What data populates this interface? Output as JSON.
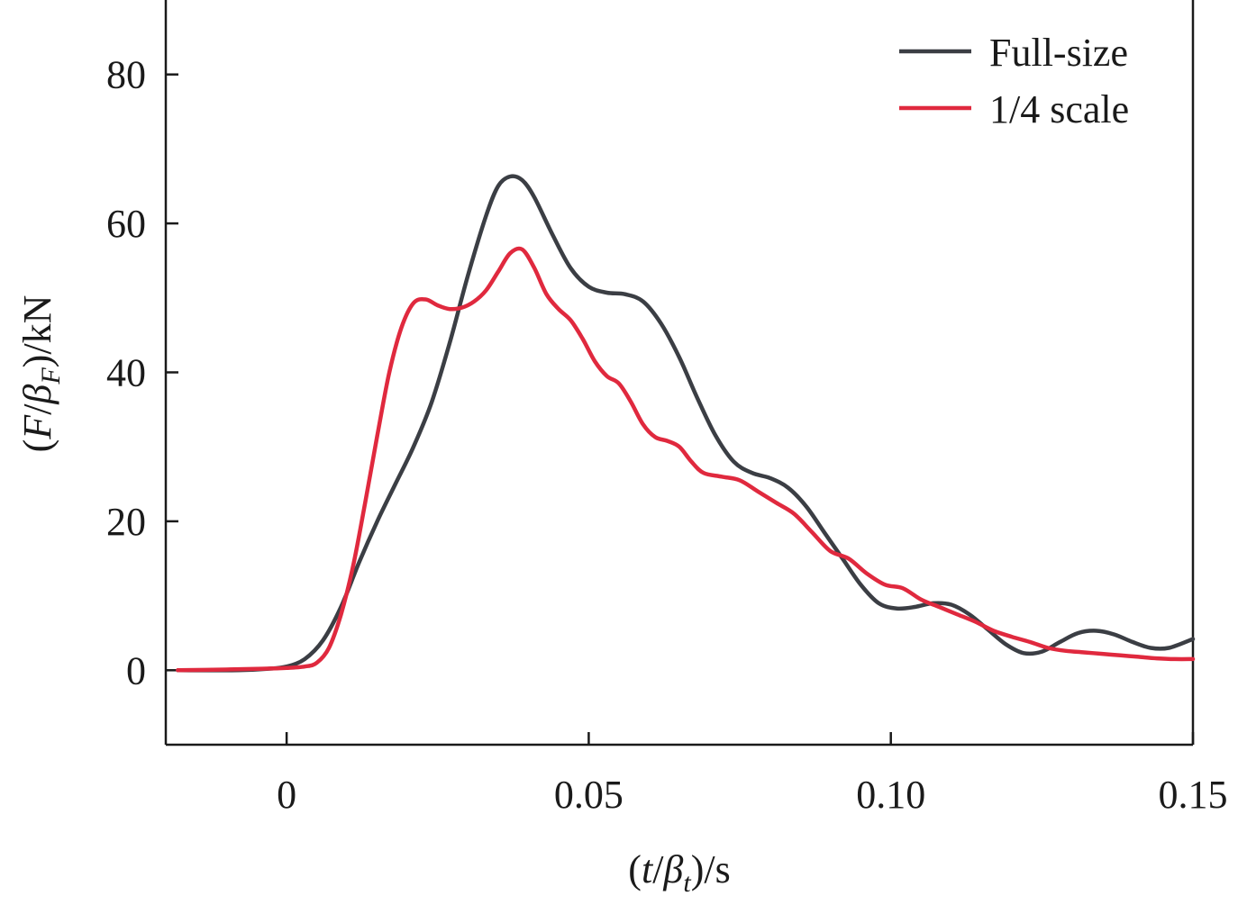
{
  "chart_data": {
    "type": "line",
    "title": "",
    "xlabel": {
      "pre": "(",
      "var": "t",
      "slash": "/",
      "beta": "β",
      "sub": "t",
      "post": ")/s"
    },
    "ylabel": {
      "pre": "(",
      "var": "F",
      "slash": "/",
      "beta": "β",
      "sub": "F",
      "post": ")/kN"
    },
    "xlim": [
      -0.02,
      0.15
    ],
    "ylim": [
      -10,
      90
    ],
    "x_ticks": [
      {
        "value": 0,
        "label": "0"
      },
      {
        "value": 0.05,
        "label": "0.05"
      },
      {
        "value": 0.1,
        "label": "0.10"
      },
      {
        "value": 0.15,
        "label": "0.15"
      }
    ],
    "y_ticks": [
      {
        "value": 0,
        "label": "0"
      },
      {
        "value": 20,
        "label": "20"
      },
      {
        "value": 40,
        "label": "40"
      },
      {
        "value": 60,
        "label": "60"
      },
      {
        "value": 80,
        "label": "80"
      }
    ],
    "grid": false,
    "legend_position": "top-right",
    "series": [
      {
        "name": "Full-size",
        "color": "#3b3e44",
        "points": [
          [
            -0.018,
            0.0
          ],
          [
            -0.008,
            0.0
          ],
          [
            -0.003,
            0.2
          ],
          [
            0.0,
            0.5
          ],
          [
            0.003,
            1.5
          ],
          [
            0.006,
            4.0
          ],
          [
            0.009,
            8.5
          ],
          [
            0.012,
            14.5
          ],
          [
            0.015,
            20.0
          ],
          [
            0.018,
            25.0
          ],
          [
            0.021,
            30.0
          ],
          [
            0.024,
            36.0
          ],
          [
            0.027,
            44.0
          ],
          [
            0.03,
            53.0
          ],
          [
            0.033,
            61.0
          ],
          [
            0.035,
            65.0
          ],
          [
            0.037,
            66.3
          ],
          [
            0.039,
            65.8
          ],
          [
            0.041,
            63.5
          ],
          [
            0.044,
            58.5
          ],
          [
            0.047,
            54.0
          ],
          [
            0.05,
            51.5
          ],
          [
            0.053,
            50.7
          ],
          [
            0.056,
            50.5
          ],
          [
            0.059,
            49.5
          ],
          [
            0.062,
            46.5
          ],
          [
            0.065,
            42.0
          ],
          [
            0.068,
            36.5
          ],
          [
            0.071,
            31.5
          ],
          [
            0.074,
            28.0
          ],
          [
            0.077,
            26.5
          ],
          [
            0.08,
            25.8
          ],
          [
            0.083,
            24.5
          ],
          [
            0.086,
            22.0
          ],
          [
            0.089,
            18.5
          ],
          [
            0.092,
            15.0
          ],
          [
            0.095,
            11.5
          ],
          [
            0.098,
            9.0
          ],
          [
            0.101,
            8.3
          ],
          [
            0.104,
            8.5
          ],
          [
            0.107,
            9.0
          ],
          [
            0.11,
            8.8
          ],
          [
            0.113,
            7.5
          ],
          [
            0.116,
            5.5
          ],
          [
            0.119,
            3.5
          ],
          [
            0.122,
            2.3
          ],
          [
            0.125,
            2.5
          ],
          [
            0.128,
            3.8
          ],
          [
            0.131,
            5.0
          ],
          [
            0.134,
            5.3
          ],
          [
            0.137,
            4.8
          ],
          [
            0.14,
            3.8
          ],
          [
            0.143,
            3.0
          ],
          [
            0.146,
            3.0
          ],
          [
            0.15,
            4.2
          ]
        ]
      },
      {
        "name": "1/4 scale",
        "color": "#e0293e",
        "points": [
          [
            -0.018,
            0.0
          ],
          [
            -0.01,
            0.1
          ],
          [
            -0.004,
            0.2
          ],
          [
            0.0,
            0.3
          ],
          [
            0.003,
            0.5
          ],
          [
            0.005,
            1.0
          ],
          [
            0.007,
            3.0
          ],
          [
            0.009,
            7.5
          ],
          [
            0.011,
            14.0
          ],
          [
            0.013,
            22.5
          ],
          [
            0.015,
            31.5
          ],
          [
            0.017,
            40.0
          ],
          [
            0.019,
            46.0
          ],
          [
            0.021,
            49.3
          ],
          [
            0.023,
            49.8
          ],
          [
            0.025,
            49.0
          ],
          [
            0.027,
            48.5
          ],
          [
            0.029,
            48.7
          ],
          [
            0.031,
            49.5
          ],
          [
            0.033,
            51.0
          ],
          [
            0.035,
            53.5
          ],
          [
            0.037,
            56.0
          ],
          [
            0.039,
            56.5
          ],
          [
            0.041,
            54.0
          ],
          [
            0.043,
            50.5
          ],
          [
            0.045,
            48.5
          ],
          [
            0.047,
            47.0
          ],
          [
            0.049,
            44.5
          ],
          [
            0.051,
            41.5
          ],
          [
            0.053,
            39.5
          ],
          [
            0.055,
            38.5
          ],
          [
            0.057,
            36.0
          ],
          [
            0.059,
            33.0
          ],
          [
            0.061,
            31.3
          ],
          [
            0.063,
            30.8
          ],
          [
            0.065,
            30.0
          ],
          [
            0.067,
            28.0
          ],
          [
            0.069,
            26.5
          ],
          [
            0.072,
            26.0
          ],
          [
            0.075,
            25.5
          ],
          [
            0.078,
            24.0
          ],
          [
            0.081,
            22.5
          ],
          [
            0.084,
            21.0
          ],
          [
            0.087,
            18.5
          ],
          [
            0.09,
            16.0
          ],
          [
            0.093,
            15.0
          ],
          [
            0.096,
            13.0
          ],
          [
            0.099,
            11.5
          ],
          [
            0.102,
            11.0
          ],
          [
            0.105,
            9.5
          ],
          [
            0.108,
            8.5
          ],
          [
            0.111,
            7.5
          ],
          [
            0.114,
            6.5
          ],
          [
            0.117,
            5.3
          ],
          [
            0.12,
            4.5
          ],
          [
            0.123,
            3.8
          ],
          [
            0.126,
            3.0
          ],
          [
            0.129,
            2.6
          ],
          [
            0.132,
            2.4
          ],
          [
            0.135,
            2.2
          ],
          [
            0.138,
            2.0
          ],
          [
            0.141,
            1.8
          ],
          [
            0.144,
            1.6
          ],
          [
            0.147,
            1.5
          ],
          [
            0.15,
            1.5
          ]
        ]
      }
    ]
  }
}
